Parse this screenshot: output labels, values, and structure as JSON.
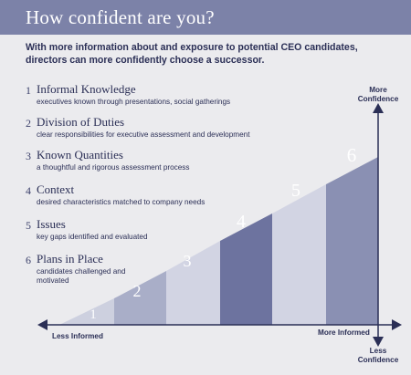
{
  "header": {
    "title": "How confident are you?"
  },
  "intro": "With more information about and exposure to potential CEO candidates, directors can more confidently choose a successor.",
  "steps": [
    {
      "num": "1",
      "title": "Informal Knowledge",
      "desc": "executives known through presentations, social gatherings"
    },
    {
      "num": "2",
      "title": "Division of Duties",
      "desc": "clear responsibilities for executive assessment and development"
    },
    {
      "num": "3",
      "title": "Known Quantities",
      "desc": "a thoughtful and rigorous assessment process"
    },
    {
      "num": "4",
      "title": "Context",
      "desc": "desired characteristics matched to company needs"
    },
    {
      "num": "5",
      "title": "Issues",
      "desc": "key gaps identified and evaluated"
    },
    {
      "num": "6",
      "title": "Plans in Place",
      "desc": "candidates challenged and motivated"
    }
  ],
  "bar_labels": [
    "1",
    "2",
    "3",
    "4",
    "5",
    "6"
  ],
  "axes": {
    "more_confidence": "More Confidence",
    "less_confidence": "Less Confidence",
    "less_informed": "Less Informed",
    "more_informed": "More Informed"
  },
  "colors": {
    "header": "#7c82a8",
    "background": "#ebebee",
    "text": "#2b2f56",
    "axis": "#2b2f56",
    "bars": [
      "#cdd0df",
      "#a9aec8",
      "#d2d4e3",
      "#6d739f",
      "#d2d4e3",
      "#8a90b3"
    ]
  }
}
